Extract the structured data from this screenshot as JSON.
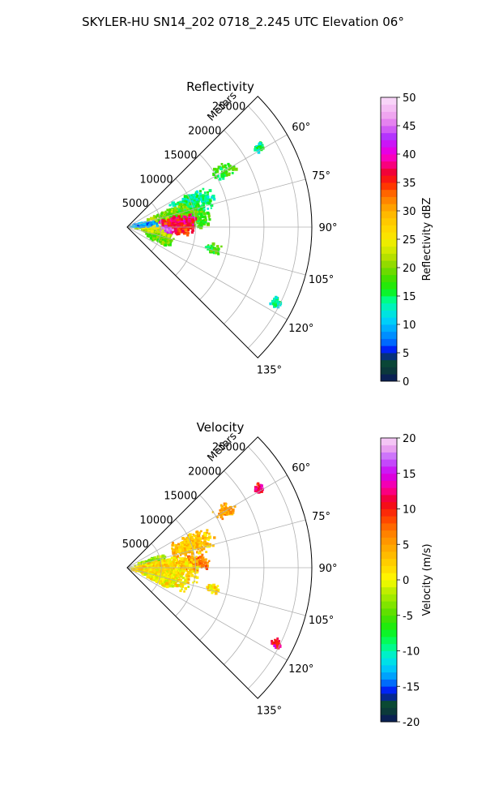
{
  "suptitle": "SKYLER-HU  SN14_202  0718_2.245 UTC Elevation 06°",
  "chart_data": [
    {
      "type": "heatmap",
      "projection": "polar-sector",
      "title": "Reflectivity",
      "radial_label": "Meters",
      "radial_ticks": [
        5000,
        10000,
        15000,
        20000,
        25000
      ],
      "angle_ticks": [
        "60°",
        "75°",
        "90°",
        "105°",
        "120°",
        "135°"
      ],
      "angle_tick_values": [
        60,
        75,
        90,
        105,
        120,
        135
      ],
      "theta_range_deg": [
        45,
        135
      ],
      "r_range": [
        0,
        27000
      ],
      "grid": true,
      "colorbar": {
        "label": "Reflectivity dBZ",
        "min": 0,
        "max": 50,
        "ticks": [
          0,
          5,
          10,
          15,
          20,
          25,
          30,
          35,
          40,
          45,
          50
        ]
      },
      "echo_regions": [
        {
          "az": 60,
          "r": 16500,
          "daz": 4,
          "dr": 1800,
          "value": 17
        },
        {
          "az": 59,
          "r": 22500,
          "daz": 2,
          "dr": 700,
          "value": 14
        },
        {
          "az": 70,
          "r": 10000,
          "daz": 9,
          "dr": 3500,
          "value": 14
        },
        {
          "az": 76,
          "r": 6500,
          "daz": 10,
          "dr": 3500,
          "value": 20
        },
        {
          "az": 82,
          "r": 9500,
          "daz": 10,
          "dr": 3000,
          "value": 18
        },
        {
          "az": 86,
          "r": 7200,
          "daz": 9,
          "dr": 3000,
          "value": 37
        },
        {
          "az": 92,
          "r": 7500,
          "daz": 7,
          "dr": 2500,
          "value": 35
        },
        {
          "az": 96,
          "r": 4800,
          "daz": 8,
          "dr": 2200,
          "value": 44
        },
        {
          "az": 90,
          "r": 3000,
          "daz": 8,
          "dr": 2000,
          "value": 24
        },
        {
          "az": 102,
          "r": 4500,
          "daz": 6,
          "dr": 2500,
          "value": 22
        },
        {
          "az": 110,
          "r": 5000,
          "daz": 7,
          "dr": 2200,
          "value": 19
        },
        {
          "az": 82,
          "r": 2500,
          "daz": 8,
          "dr": 2000,
          "value": 8
        },
        {
          "az": 104,
          "r": 13000,
          "daz": 3,
          "dr": 1200,
          "value": 17
        },
        {
          "az": 117,
          "r": 24500,
          "daz": 2,
          "dr": 800,
          "value": 14
        }
      ]
    },
    {
      "type": "heatmap",
      "projection": "polar-sector",
      "title": "Velocity",
      "radial_label": "Meters",
      "radial_ticks": [
        5000,
        10000,
        15000,
        20000,
        25000
      ],
      "angle_ticks": [
        "60°",
        "75°",
        "90°",
        "105°",
        "120°",
        "135°"
      ],
      "angle_tick_values": [
        60,
        75,
        90,
        105,
        120,
        135
      ],
      "theta_range_deg": [
        45,
        135
      ],
      "r_range": [
        0,
        27000
      ],
      "grid": true,
      "colorbar": {
        "label": "Velocity (m/s)",
        "min": -20,
        "max": 20,
        "ticks": [
          -20,
          -15,
          -10,
          -5,
          0,
          5,
          10,
          15,
          20
        ]
      },
      "echo_regions": [
        {
          "az": 60,
          "r": 16500,
          "daz": 4,
          "dr": 1800,
          "value": 5
        },
        {
          "az": 59,
          "r": 22500,
          "daz": 2,
          "dr": 700,
          "value": 11
        },
        {
          "az": 70,
          "r": 10000,
          "daz": 9,
          "dr": 3500,
          "value": 3
        },
        {
          "az": 76,
          "r": 3500,
          "daz": 8,
          "dr": 2500,
          "value": -3
        },
        {
          "az": 86,
          "r": 9800,
          "daz": 7,
          "dr": 2500,
          "value": 6
        },
        {
          "az": 90,
          "r": 6000,
          "daz": 14,
          "dr": 5000,
          "value": 2
        },
        {
          "az": 103,
          "r": 5000,
          "daz": 12,
          "dr": 4500,
          "value": 1
        },
        {
          "az": 110,
          "r": 5000,
          "daz": 7,
          "dr": 2200,
          "value": 1
        },
        {
          "az": 104,
          "r": 13000,
          "daz": 3,
          "dr": 1200,
          "value": 2
        },
        {
          "az": 117,
          "r": 24500,
          "daz": 2,
          "dr": 800,
          "value": 12
        }
      ]
    }
  ]
}
